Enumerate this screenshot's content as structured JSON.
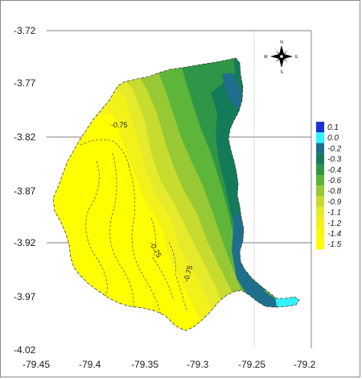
{
  "chart_data": {
    "type": "contour-map",
    "x_ticks": [
      "-79.45",
      "-79.4",
      "-79.35",
      "-79.3",
      "-79.25",
      "-79.2"
    ],
    "y_ticks": [
      "-3.72",
      "-3.77",
      "-3.82",
      "-3.87",
      "-3.92",
      "-3.97",
      "-4.02"
    ],
    "xlim": [
      -79.45,
      -79.2
    ],
    "ylim": [
      -4.02,
      -3.72
    ],
    "gridlines": "major, horizontal and vertical",
    "legend": {
      "placement": "right",
      "levels": [
        {
          "label": "0.1",
          "color": "#1c2fd6"
        },
        {
          "label": "0.0",
          "color": "#33f2ff"
        },
        {
          "label": "-0.2",
          "color": "#1f6e8c"
        },
        {
          "label": "-0.3",
          "color": "#147b5a"
        },
        {
          "label": "-0.4",
          "color": "#2e9646"
        },
        {
          "label": "-0.6",
          "color": "#5db53a"
        },
        {
          "label": "-0.8",
          "color": "#98c934"
        },
        {
          "label": "-0.9",
          "color": "#c7dc2e"
        },
        {
          "label": "-1.1",
          "color": "#e5ea2a"
        },
        {
          "label": "-1.2",
          "color": "#f2f21a"
        },
        {
          "label": "-1.4",
          "color": "#f8f80c"
        },
        {
          "label": "-1.5",
          "color": "#ffff00"
        }
      ]
    },
    "contour_labels": [
      "-0.75",
      "-0.75",
      "-0.75"
    ],
    "compass": {
      "n": "N",
      "s": "S",
      "e": "E",
      "w": "W"
    }
  }
}
